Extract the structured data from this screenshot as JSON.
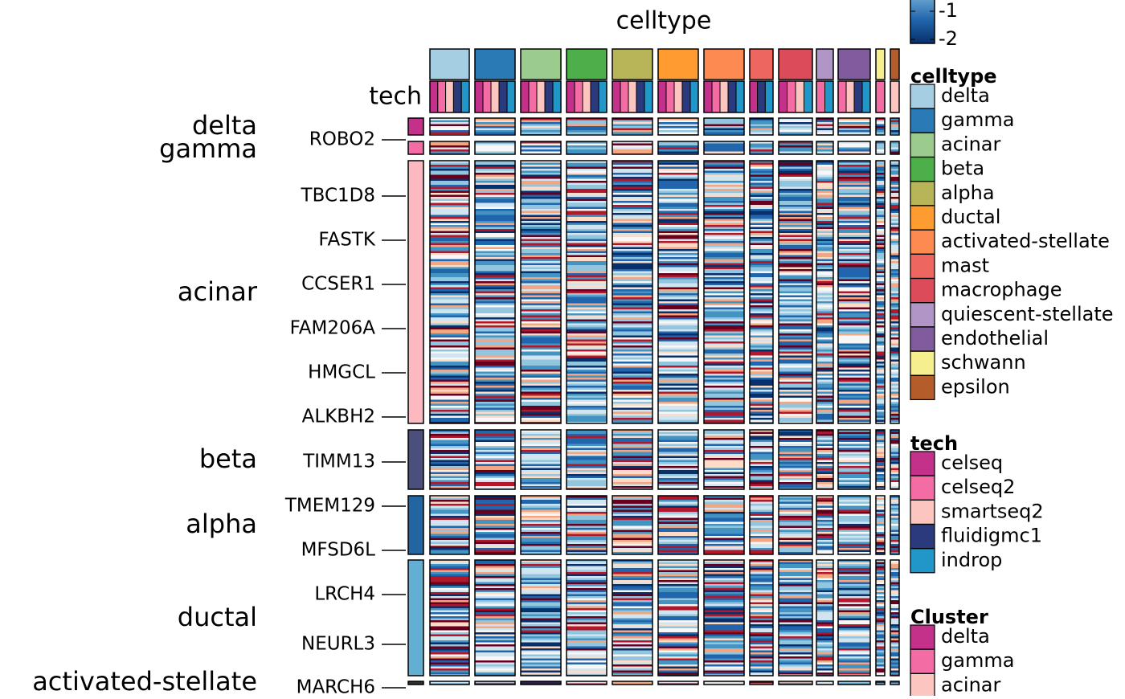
{
  "chart_data": {
    "type": "heatmap",
    "title": "celltype",
    "tech_label": "tech",
    "columns": [
      "delta",
      "gamma",
      "acinar",
      "beta",
      "alpha",
      "ductal",
      "activated-stellate",
      "mast",
      "macrophage",
      "quiescent-stellate",
      "endothelial",
      "schwann",
      "epsilon"
    ],
    "column_colors": [
      "#a6cee3",
      "#2a7ab5",
      "#9bcc8d",
      "#4daf4a",
      "#b8b458",
      "#fe9c31",
      "#fd8b51",
      "#ee6660",
      "#dc4b5a",
      "#b295c7",
      "#805c9e",
      "#f6ef8e",
      "#b45c2a"
    ],
    "column_tech": [
      [
        "celseq",
        "celseq2",
        "smartseq2",
        "fluidigmc1",
        "indrop"
      ],
      [
        "celseq",
        "celseq2",
        "smartseq2",
        "fluidigmc1",
        "indrop"
      ],
      [
        "celseq",
        "celseq2",
        "smartseq2",
        "fluidigmc1",
        "indrop"
      ],
      [
        "celseq",
        "celseq2",
        "smartseq2",
        "fluidigmc1",
        "indrop"
      ],
      [
        "celseq",
        "celseq2",
        "smartseq2",
        "fluidigmc1",
        "indrop"
      ],
      [
        "celseq",
        "celseq2",
        "smartseq2",
        "fluidigmc1",
        "indrop"
      ],
      [
        "celseq",
        "celseq2",
        "smartseq2",
        "fluidigmc1",
        "indrop"
      ],
      [
        "celseq",
        "fluidigmc1",
        "indrop"
      ],
      [
        "celseq",
        "celseq2",
        "smartseq2",
        "indrop"
      ],
      [
        "celseq2",
        "indrop"
      ],
      [
        "celseq2",
        "smartseq2",
        "fluidigmc1",
        "indrop"
      ],
      [
        "celseq2"
      ],
      [
        "smartseq2"
      ]
    ],
    "row_groups": [
      "delta",
      "gamma",
      "acinar",
      "beta",
      "alpha",
      "ductal",
      "activated-stellate"
    ],
    "row_group_colors": [
      "#c4318a",
      "#f36da4",
      "#fdb9bf",
      "#4b4f7c",
      "#2166a0",
      "#63aed3",
      "#303030"
    ],
    "genes": [
      "ROBO2",
      "TBC1D8",
      "FASTK",
      "CCSER1",
      "FAM206A",
      "HMGCL",
      "ALKBH2",
      "TIMM13",
      "TMEM129",
      "MFSD6L",
      "LRCH4",
      "NEURL3",
      "MARCH6"
    ],
    "colorbar_ticks": [
      -1,
      -2
    ],
    "legends": [
      {
        "title": "celltype",
        "items": [
          "delta",
          "gamma",
          "acinar",
          "beta",
          "alpha",
          "ductal",
          "activated-stellate",
          "mast",
          "macrophage",
          "quiescent-stellate",
          "endothelial",
          "schwann",
          "epsilon"
        ],
        "colors": [
          "#a6cee3",
          "#2a7ab5",
          "#9bcc8d",
          "#4daf4a",
          "#b8b458",
          "#fe9c31",
          "#fd8b51",
          "#ee6660",
          "#dc4b5a",
          "#b295c7",
          "#805c9e",
          "#f6ef8e",
          "#b45c2a"
        ]
      },
      {
        "title": "tech",
        "items": [
          "celseq",
          "celseq2",
          "smartseq2",
          "fluidigmc1",
          "indrop"
        ],
        "colors": [
          "#c4318a",
          "#f36da4",
          "#fcc5c0",
          "#2b3a7d",
          "#2196c8"
        ]
      },
      {
        "title": "Cluster",
        "items": [
          "delta",
          "gamma",
          "acinar"
        ],
        "colors": [
          "#c4318a",
          "#f36da4",
          "#fcc5c0"
        ]
      }
    ]
  }
}
